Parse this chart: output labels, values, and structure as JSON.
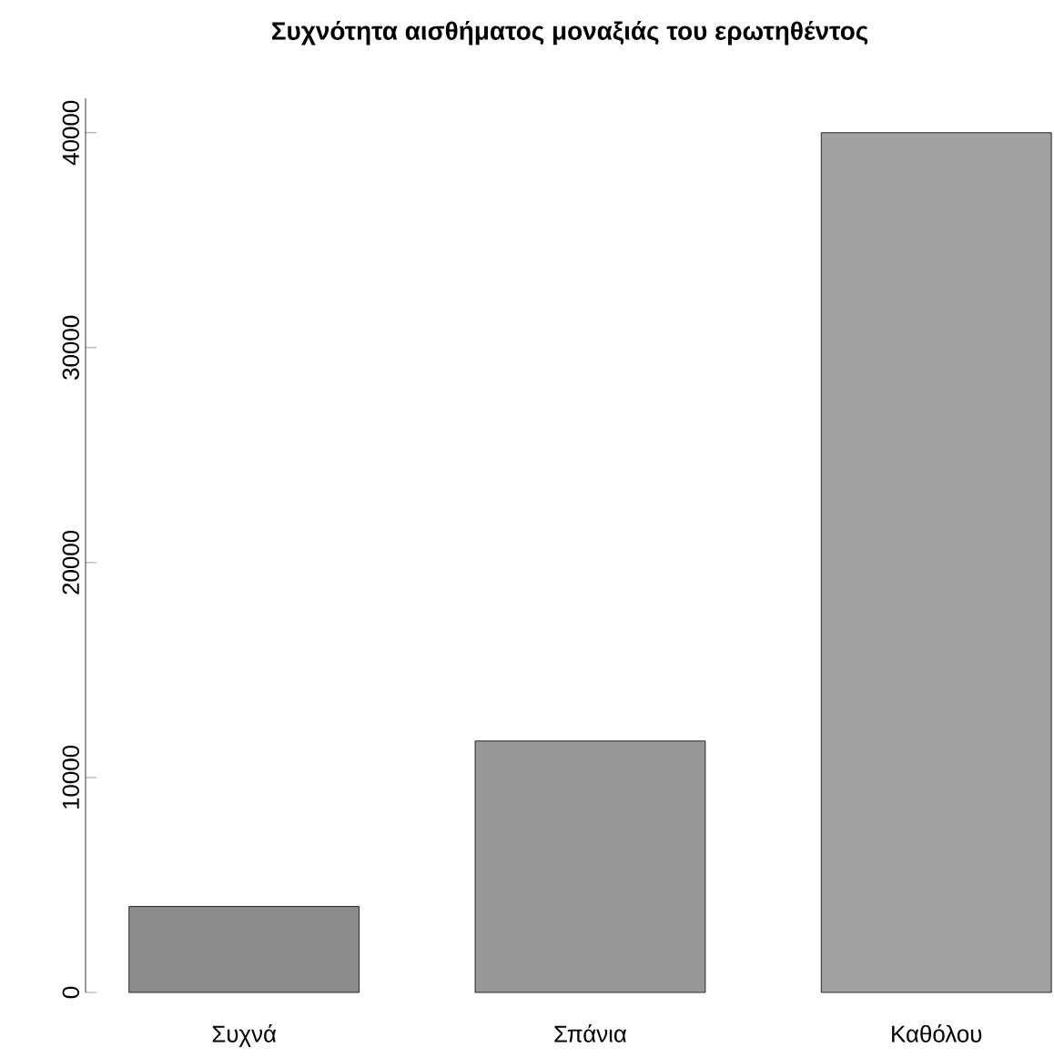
{
  "chart_data": {
    "type": "bar",
    "title": "Συχνότητα αισθήματος μοναξιάς του ερωτηθέντος",
    "categories": [
      "Συχνά",
      "Σπάνια",
      "Καθόλου"
    ],
    "values": [
      4000,
      11700,
      40000
    ],
    "colors": [
      "#8c8c8c",
      "#989898",
      "#a2a2a2"
    ],
    "ylim": [
      0,
      41600
    ],
    "yticks": [
      0,
      10000,
      20000,
      30000,
      40000
    ]
  }
}
